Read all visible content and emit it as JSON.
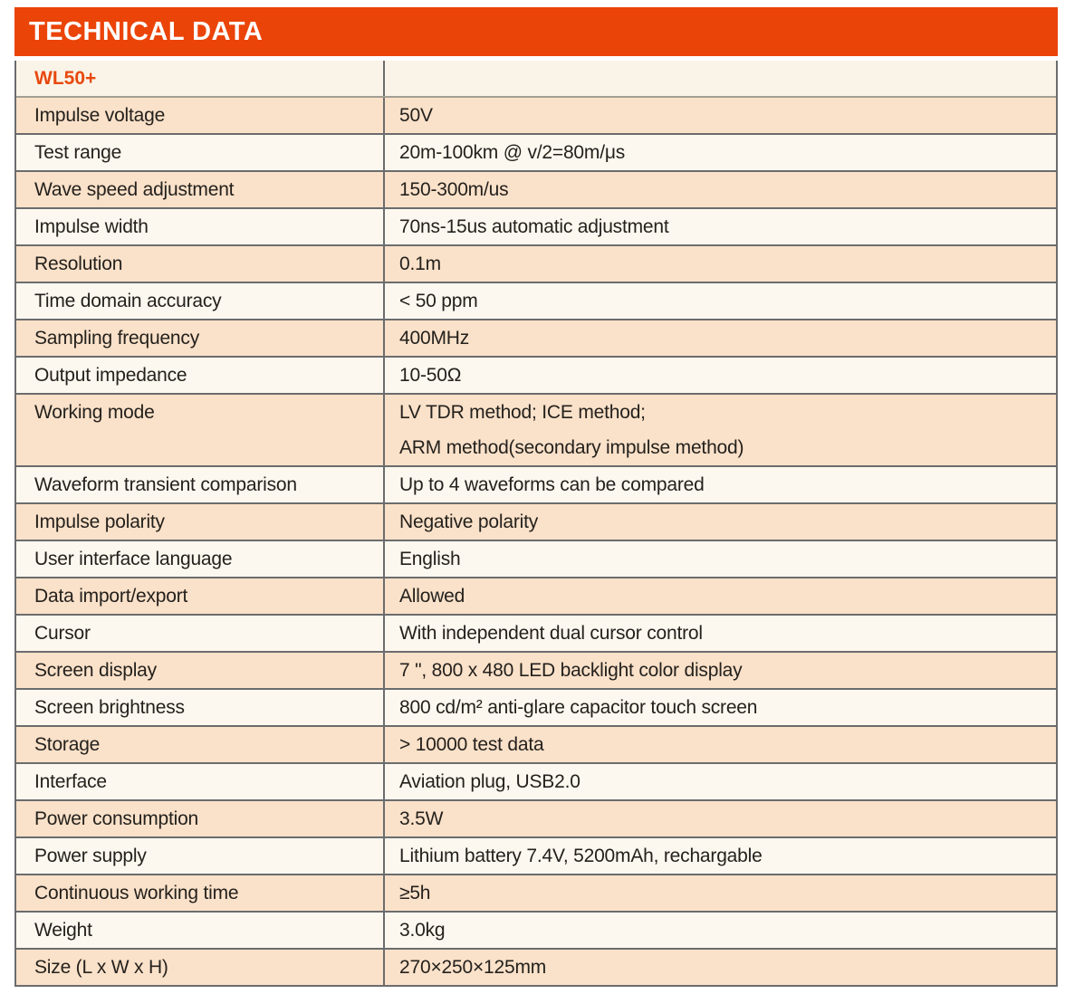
{
  "header": {
    "title": "TECHNICAL DATA"
  },
  "model": "WL50+",
  "colors": {
    "accent_orange": "#eb4409",
    "model_text_orange": "#e8490f",
    "row_peach": "#fae1c9",
    "row_cream": "#fdf8ef",
    "model_row_bg": "#faf4e8",
    "border_gray": "#6b6c6e",
    "text_dark": "#24211d"
  },
  "table": {
    "rows": [
      {
        "label": "Impulse voltage",
        "value": "50V"
      },
      {
        "label": "Test range",
        "value": "20m-100km @ v/2=80m/μs"
      },
      {
        "label": "Wave speed adjustment",
        "value": "150-300m/us"
      },
      {
        "label": "Impulse width",
        "value": "70ns-15us automatic adjustment"
      },
      {
        "label": "Resolution",
        "value": "0.1m"
      },
      {
        "label": "Time domain accuracy",
        "value": "< 50 ppm"
      },
      {
        "label": "Sampling frequency",
        "value": "400MHz"
      },
      {
        "label": "Output impedance",
        "value": "10-50Ω"
      },
      {
        "label": "Working mode",
        "value_lines": [
          "LV TDR method; ICE method;",
          "ARM method(secondary impulse method)"
        ]
      },
      {
        "label": "Waveform transient comparison",
        "value": "Up to 4 waveforms can be compared"
      },
      {
        "label": "Impulse polarity",
        "value": "Negative polarity"
      },
      {
        "label": "User interface language",
        "value": "English"
      },
      {
        "label": "Data import/export",
        "value": "Allowed"
      },
      {
        "label": "Cursor",
        "value": "With independent dual cursor control"
      },
      {
        "label": "Screen display",
        "value": "7 \", 800 x 480 LED backlight color display"
      },
      {
        "label": "Screen brightness",
        "value": "800 cd/m² anti-glare capacitor touch screen"
      },
      {
        "label": "Storage",
        "value": "> 10000 test data"
      },
      {
        "label": "Interface",
        "value": "Aviation plug, USB2.0"
      },
      {
        "label": "Power consumption",
        "value": "3.5W"
      },
      {
        "label": "Power supply",
        "value": "Lithium battery 7.4V, 5200mAh, rechargable"
      },
      {
        "label": "Continuous working time",
        "value": "≥5h"
      },
      {
        "label": "Weight",
        "value": "3.0kg"
      },
      {
        "label": "Size (L x W x H)",
        "value": "270×250×125mm"
      }
    ]
  }
}
